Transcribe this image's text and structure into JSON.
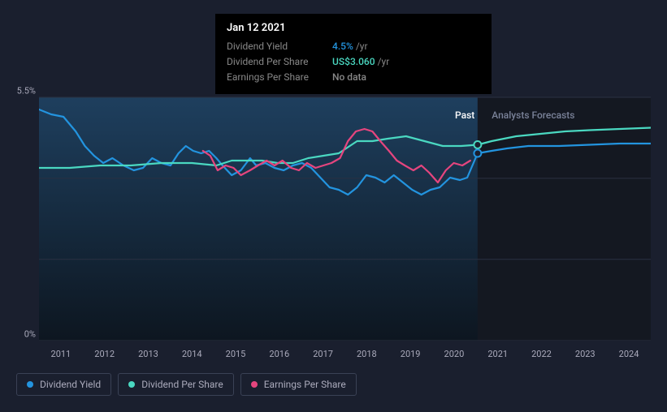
{
  "tooltip": {
    "date": "Jan 12 2021",
    "rows": [
      {
        "label": "Dividend Yield",
        "value": "4.5%",
        "suffix": "/yr",
        "color": "#2394df"
      },
      {
        "label": "Dividend Per Share",
        "value": "US$3.060",
        "suffix": "/yr",
        "color": "#4ad8c1"
      },
      {
        "label": "Earnings Per Share",
        "value": "No data",
        "suffix": "",
        "color": "#888"
      }
    ]
  },
  "chart": {
    "background": "#1a1f2e",
    "plot_bg_past": "linear-gradient(180deg,#1b3a5a 0%,#0e1823 100%)",
    "plot_bg_future": "#141821",
    "ylim": [
      0,
      5.5
    ],
    "y_labels": [
      "5.5%",
      "0%"
    ],
    "x_labels": [
      "2011",
      "2012",
      "2013",
      "2014",
      "2015",
      "2016",
      "2017",
      "2018",
      "2019",
      "2020",
      "2021",
      "2022",
      "2023",
      "2024"
    ],
    "gridline_color": "#2a3142",
    "gridlines_y": [
      0,
      0.333,
      0.666,
      1.0
    ],
    "divider_x": 0.717,
    "region_labels": {
      "past": {
        "text": "Past",
        "x": 0.68
      },
      "forecast": {
        "text": "Analysts Forecasts",
        "x": 0.74
      }
    },
    "marker_points": [
      {
        "x": 0.717,
        "y": 0.805,
        "color": "#4ad8c1"
      },
      {
        "x": 0.717,
        "y": 0.77,
        "color": "#2394df"
      }
    ],
    "series": [
      {
        "name": "Dividend Yield",
        "color": "#2394df",
        "width": 2.2,
        "points": [
          [
            0.0,
            0.95
          ],
          [
            0.02,
            0.93
          ],
          [
            0.04,
            0.92
          ],
          [
            0.06,
            0.86
          ],
          [
            0.075,
            0.8
          ],
          [
            0.09,
            0.76
          ],
          [
            0.105,
            0.73
          ],
          [
            0.12,
            0.75
          ],
          [
            0.138,
            0.72
          ],
          [
            0.155,
            0.7
          ],
          [
            0.17,
            0.71
          ],
          [
            0.185,
            0.75
          ],
          [
            0.2,
            0.73
          ],
          [
            0.215,
            0.72
          ],
          [
            0.228,
            0.77
          ],
          [
            0.24,
            0.8
          ],
          [
            0.252,
            0.78
          ],
          [
            0.265,
            0.77
          ],
          [
            0.278,
            0.78
          ],
          [
            0.29,
            0.75
          ],
          [
            0.3,
            0.72
          ],
          [
            0.315,
            0.68
          ],
          [
            0.33,
            0.7
          ],
          [
            0.345,
            0.75
          ],
          [
            0.355,
            0.72
          ],
          [
            0.37,
            0.73
          ],
          [
            0.385,
            0.71
          ],
          [
            0.4,
            0.7
          ],
          [
            0.415,
            0.72
          ],
          [
            0.43,
            0.73
          ],
          [
            0.445,
            0.71
          ],
          [
            0.46,
            0.67
          ],
          [
            0.475,
            0.63
          ],
          [
            0.49,
            0.62
          ],
          [
            0.505,
            0.6
          ],
          [
            0.52,
            0.63
          ],
          [
            0.535,
            0.68
          ],
          [
            0.55,
            0.67
          ],
          [
            0.565,
            0.65
          ],
          [
            0.58,
            0.68
          ],
          [
            0.595,
            0.65
          ],
          [
            0.61,
            0.62
          ],
          [
            0.625,
            0.6
          ],
          [
            0.64,
            0.62
          ],
          [
            0.655,
            0.63
          ],
          [
            0.672,
            0.67
          ],
          [
            0.688,
            0.66
          ],
          [
            0.7,
            0.67
          ],
          [
            0.717,
            0.77
          ],
          [
            0.74,
            0.78
          ],
          [
            0.765,
            0.79
          ],
          [
            0.8,
            0.8
          ],
          [
            0.85,
            0.8
          ],
          [
            0.9,
            0.805
          ],
          [
            0.95,
            0.81
          ],
          [
            1.0,
            0.81
          ]
        ]
      },
      {
        "name": "Dividend Per Share",
        "color": "#4ad8c1",
        "width": 2.2,
        "points": [
          [
            0.0,
            0.71
          ],
          [
            0.05,
            0.71
          ],
          [
            0.1,
            0.72
          ],
          [
            0.15,
            0.72
          ],
          [
            0.2,
            0.73
          ],
          [
            0.25,
            0.73
          ],
          [
            0.29,
            0.72
          ],
          [
            0.315,
            0.74
          ],
          [
            0.34,
            0.74
          ],
          [
            0.365,
            0.74
          ],
          [
            0.39,
            0.73
          ],
          [
            0.415,
            0.73
          ],
          [
            0.44,
            0.75
          ],
          [
            0.465,
            0.76
          ],
          [
            0.49,
            0.77
          ],
          [
            0.52,
            0.82
          ],
          [
            0.545,
            0.82
          ],
          [
            0.57,
            0.83
          ],
          [
            0.6,
            0.84
          ],
          [
            0.63,
            0.82
          ],
          [
            0.66,
            0.8
          ],
          [
            0.69,
            0.8
          ],
          [
            0.717,
            0.805
          ],
          [
            0.74,
            0.82
          ],
          [
            0.78,
            0.84
          ],
          [
            0.82,
            0.85
          ],
          [
            0.86,
            0.86
          ],
          [
            0.9,
            0.865
          ],
          [
            0.95,
            0.87
          ],
          [
            1.0,
            0.875
          ]
        ]
      },
      {
        "name": "Earnings Per Share",
        "color": "#e5457e",
        "width": 2.2,
        "points": [
          [
            0.268,
            0.78
          ],
          [
            0.28,
            0.76
          ],
          [
            0.292,
            0.7
          ],
          [
            0.305,
            0.72
          ],
          [
            0.318,
            0.71
          ],
          [
            0.33,
            0.68
          ],
          [
            0.345,
            0.7
          ],
          [
            0.358,
            0.72
          ],
          [
            0.372,
            0.74
          ],
          [
            0.385,
            0.72
          ],
          [
            0.398,
            0.74
          ],
          [
            0.412,
            0.71
          ],
          [
            0.425,
            0.7
          ],
          [
            0.438,
            0.73
          ],
          [
            0.452,
            0.71
          ],
          [
            0.465,
            0.72
          ],
          [
            0.478,
            0.73
          ],
          [
            0.492,
            0.75
          ],
          [
            0.505,
            0.82
          ],
          [
            0.518,
            0.86
          ],
          [
            0.532,
            0.87
          ],
          [
            0.545,
            0.86
          ],
          [
            0.558,
            0.82
          ],
          [
            0.572,
            0.78
          ],
          [
            0.585,
            0.74
          ],
          [
            0.598,
            0.72
          ],
          [
            0.612,
            0.7
          ],
          [
            0.625,
            0.72
          ],
          [
            0.638,
            0.69
          ],
          [
            0.652,
            0.65
          ],
          [
            0.665,
            0.7
          ],
          [
            0.678,
            0.73
          ],
          [
            0.692,
            0.72
          ],
          [
            0.705,
            0.74
          ]
        ]
      }
    ]
  },
  "legend": [
    {
      "label": "Dividend Yield",
      "color": "#2394df"
    },
    {
      "label": "Dividend Per Share",
      "color": "#4ad8c1"
    },
    {
      "label": "Earnings Per Share",
      "color": "#e5457e"
    }
  ]
}
